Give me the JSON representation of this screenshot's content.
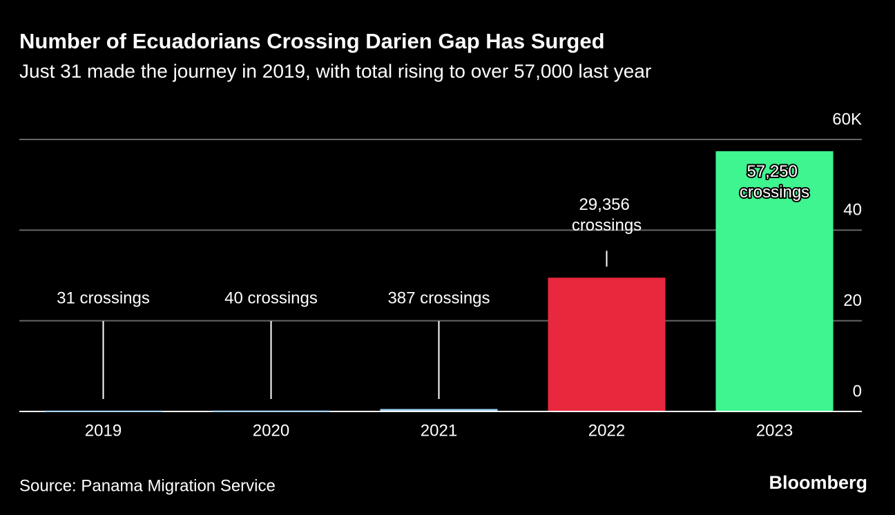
{
  "chart_data": {
    "type": "bar",
    "title": "Number of Ecuadorians Crossing Darien Gap Has Surged",
    "subtitle": "Just 31 made the journey in 2019, with total rising to over 57,000 last year",
    "categories": [
      "2019",
      "2020",
      "2021",
      "2022",
      "2023"
    ],
    "values": [
      0.031,
      0.04,
      0.387,
      29.356,
      57.25
    ],
    "value_labels": [
      "31 crossings",
      "40 crossings",
      "387 crossings",
      "29,356 crossings",
      "57,250 crossings"
    ],
    "colors": [
      "#9ed0f5",
      "#9ed0f5",
      "#9ed0f5",
      "#e8283c",
      "#3ef58f"
    ],
    "ylim": [
      0,
      60
    ],
    "yticks": [
      0,
      20,
      40,
      {
        "value": 60,
        "label": "60K"
      }
    ],
    "grid": true,
    "source": "Source: Panama Migration Service",
    "brand": "Bloomberg"
  }
}
